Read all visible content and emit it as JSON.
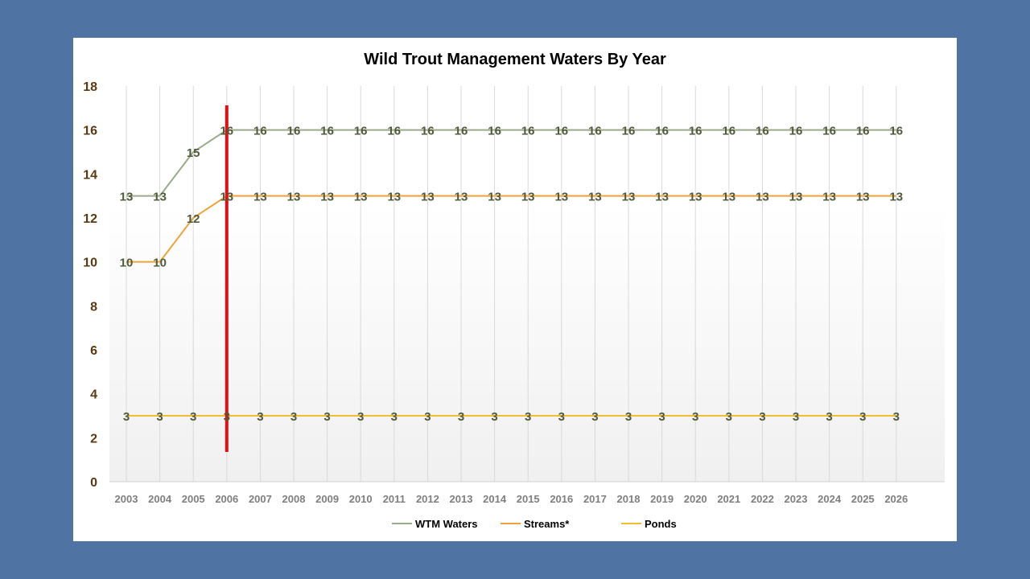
{
  "chart_data": {
    "type": "line",
    "title": "Wild Trout Management Waters By Year",
    "xlabel": "",
    "ylabel": "",
    "categories": [
      "2003",
      "2004",
      "2005",
      "2006",
      "2007",
      "2008",
      "2009",
      "2010",
      "2011",
      "2012",
      "2013",
      "2014",
      "2015",
      "2016",
      "2017",
      "2018",
      "2019",
      "2020",
      "2021",
      "2022",
      "2023",
      "2024",
      "2025",
      "2026"
    ],
    "ylim": [
      0,
      18
    ],
    "yticks": [
      0,
      2,
      4,
      6,
      8,
      10,
      12,
      14,
      16,
      18
    ],
    "grid": "vertical",
    "legend": "bottom",
    "marker_line_at": "2006",
    "series": [
      {
        "name": "WTM Waters",
        "color": "#9aab8a",
        "values": [
          13,
          13,
          15,
          16,
          16,
          16,
          16,
          16,
          16,
          16,
          16,
          16,
          16,
          16,
          16,
          16,
          16,
          16,
          16,
          16,
          16,
          16,
          16,
          16
        ]
      },
      {
        "name": "Streams*",
        "color": "#f0a33a",
        "values": [
          10,
          10,
          12,
          13,
          13,
          13,
          13,
          13,
          13,
          13,
          13,
          13,
          13,
          13,
          13,
          13,
          13,
          13,
          13,
          13,
          13,
          13,
          13,
          13
        ]
      },
      {
        "name": "Ponds",
        "color": "#f2be2e",
        "values": [
          3,
          3,
          3,
          3,
          3,
          3,
          3,
          3,
          3,
          3,
          3,
          3,
          3,
          3,
          3,
          3,
          3,
          3,
          3,
          3,
          3,
          3,
          3,
          3
        ]
      }
    ],
    "colors": {
      "background": "#4f74a3",
      "marker_line": "#e01010",
      "grid": "#d9d9d9"
    }
  }
}
